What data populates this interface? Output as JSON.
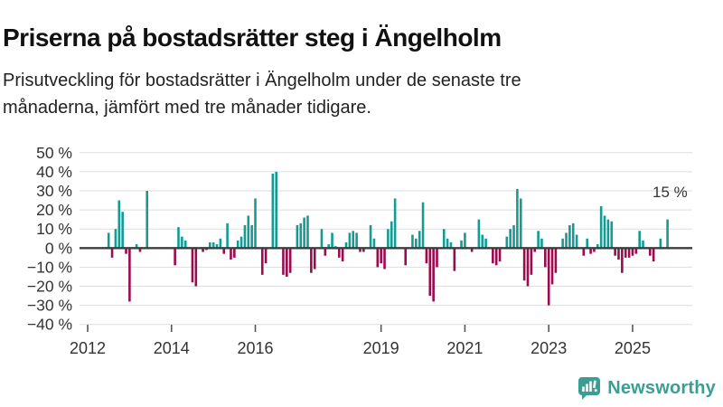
{
  "header": {
    "title": "Priserna på bostadsrätter steg i Ängelholm",
    "subtitle_line1": "Prisutveckling för bostadsrätter i Ängelholm under de senaste tre",
    "subtitle_line2": "månaderna, jämfört med tre månader tidigare."
  },
  "chart_data": {
    "type": "bar",
    "title": "Prisutveckling för bostadsrätter i Ängelholm, tremånadersförändring",
    "unit": "%",
    "frequency": "monthly",
    "start_month": "2012-07",
    "end_month": "2025-11",
    "values": [
      8,
      -5,
      10,
      25,
      19,
      -3,
      -28,
      0,
      2,
      -2,
      0,
      30,
      0,
      0,
      0,
      0,
      0,
      0,
      0,
      -9,
      11,
      6,
      4,
      0,
      -18,
      -20,
      0,
      -2,
      -1,
      3,
      3,
      2,
      5,
      -3,
      13,
      -6,
      -5,
      4,
      6,
      12,
      17,
      12,
      26,
      0,
      -14,
      -8,
      0,
      39,
      40,
      0,
      -14,
      -15,
      -13,
      0,
      12,
      13,
      16,
      17,
      -13,
      -11,
      0,
      10,
      -4,
      2,
      8,
      1,
      -5,
      -7,
      3,
      8,
      9,
      8,
      -2,
      -2,
      0,
      12,
      5,
      -10,
      -8,
      -11,
      10,
      14,
      26,
      0,
      0,
      -9,
      0,
      7,
      5,
      9,
      24,
      -8,
      -25,
      -28,
      -10,
      0,
      10,
      5,
      3,
      -12,
      0,
      4,
      8,
      0,
      -2,
      0,
      15,
      7,
      5,
      0,
      -8,
      -9,
      -7,
      0,
      6,
      10,
      12,
      31,
      26,
      -17,
      -20,
      -14,
      -2,
      9,
      5,
      -10,
      -30,
      -19,
      -13,
      0,
      5,
      8,
      12,
      13,
      7,
      0,
      -4,
      5,
      -3,
      -2,
      2,
      22,
      17,
      15,
      14,
      -4,
      -6,
      -13,
      -5,
      -5,
      -4,
      -3,
      9,
      4,
      0,
      -4,
      -7,
      0,
      5,
      0,
      15
    ],
    "ylim": [
      -40,
      50
    ],
    "grid": true,
    "y_ticks": [
      {
        "label": "50 %",
        "value": 50
      },
      {
        "label": "40 %",
        "value": 40
      },
      {
        "label": "30 %",
        "value": 30
      },
      {
        "label": "20 %",
        "value": 20
      },
      {
        "label": "10 %",
        "value": 10
      },
      {
        "label": "0 %",
        "value": 0
      },
      {
        "label": "−10 %",
        "value": -10
      },
      {
        "label": "−20 %",
        "value": -20
      },
      {
        "label": "−30 %",
        "value": -30
      },
      {
        "label": "−40 %",
        "value": -40
      }
    ],
    "x_ticks": [
      {
        "label": "2012",
        "year": 2012
      },
      {
        "label": "2014",
        "year": 2014
      },
      {
        "label": "2016",
        "year": 2016
      },
      {
        "label": "2019",
        "year": 2019
      },
      {
        "label": "2021",
        "year": 2021
      },
      {
        "label": "2023",
        "year": 2023
      },
      {
        "label": "2025",
        "year": 2025
      }
    ],
    "annotation": {
      "text": "15 %",
      "value": 15
    },
    "colors": {
      "positive": "#149c94",
      "negative": "#970d4d",
      "zero_line": "#3d3d3d",
      "grid_line": "#dedede",
      "axis_text": "#333333",
      "tick_mark": "#555555"
    }
  },
  "branding": {
    "name": "Newsworthy",
    "color": "#3b9e94",
    "icon": "newsworthy-bar-chart-bubble"
  }
}
